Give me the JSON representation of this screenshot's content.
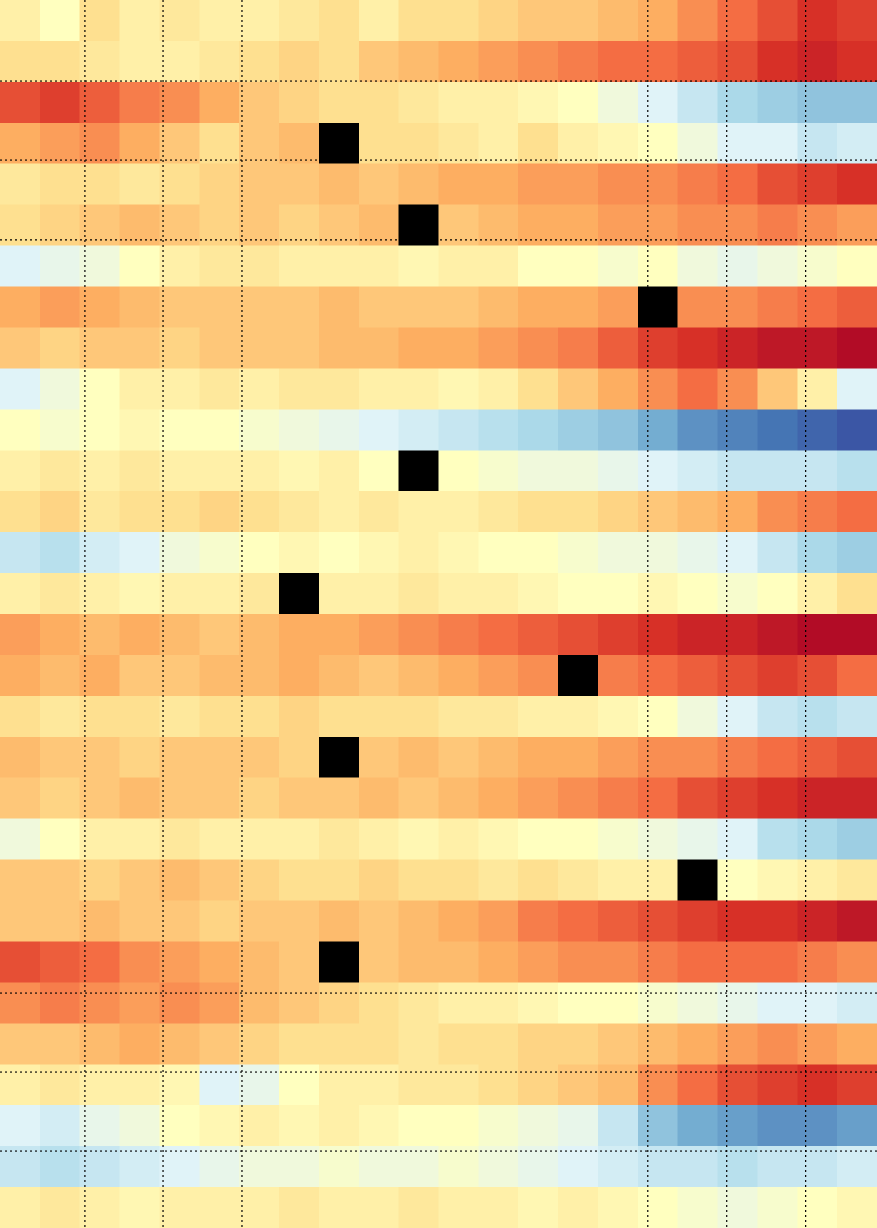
{
  "chart_data": {
    "type": "heatmap",
    "vlim": [
      -1,
      1
    ],
    "colormap": [
      "#313695",
      "#4575b4",
      "#74add1",
      "#abd9e9",
      "#e0f3f8",
      "#ffffbf",
      "#fee090",
      "#fdae61",
      "#f46d43",
      "#d73027",
      "#a50026"
    ],
    "missing_color": "#000000",
    "xlim": [
      0,
      22
    ],
    "ylim": [
      30,
      0
    ],
    "xticks": [
      2.13,
      4.09,
      6.07,
      16.25,
      18.23,
      20.21
    ],
    "yticks": [
      1.98,
      3.91,
      5.86,
      24.26,
      26.19,
      28.12
    ],
    "grid": true,
    "grid_color": "#000000",
    "values": [
      [
        0.1,
        0.0,
        0.2,
        0.1,
        0.15,
        0.1,
        0.1,
        0.15,
        0.2,
        0.1,
        0.2,
        0.2,
        0.25,
        0.3,
        0.3,
        0.35,
        0.4,
        0.5,
        0.6,
        0.7,
        0.8,
        0.75
      ],
      [
        0.2,
        0.2,
        0.15,
        0.1,
        0.1,
        0.15,
        0.2,
        0.25,
        0.2,
        0.3,
        0.35,
        0.4,
        0.45,
        0.5,
        0.55,
        0.6,
        0.6,
        0.65,
        0.7,
        0.8,
        0.85,
        0.8
      ],
      [
        0.7,
        0.75,
        0.65,
        0.55,
        0.5,
        0.4,
        0.3,
        0.25,
        0.2,
        0.2,
        0.15,
        0.1,
        0.1,
        0.05,
        0.0,
        -0.1,
        -0.2,
        -0.3,
        -0.4,
        -0.45,
        -0.5,
        -0.5
      ],
      [
        0.4,
        0.45,
        0.5,
        0.4,
        0.3,
        0.2,
        0.3,
        0.35,
        null,
        0.2,
        0.2,
        0.15,
        0.1,
        0.2,
        0.1,
        0.05,
        0.0,
        -0.1,
        -0.2,
        -0.2,
        -0.3,
        -0.25
      ],
      [
        0.15,
        0.2,
        0.2,
        0.15,
        0.2,
        0.25,
        0.3,
        0.3,
        0.35,
        0.3,
        0.35,
        0.4,
        0.4,
        0.45,
        0.45,
        0.5,
        0.5,
        0.55,
        0.6,
        0.7,
        0.75,
        0.8
      ],
      [
        0.2,
        0.25,
        0.3,
        0.35,
        0.3,
        0.25,
        0.3,
        0.25,
        0.3,
        0.35,
        null,
        0.3,
        0.35,
        0.4,
        0.4,
        0.45,
        0.45,
        0.5,
        0.5,
        0.55,
        0.5,
        0.45
      ],
      [
        -0.2,
        -0.15,
        -0.1,
        0.0,
        0.1,
        0.15,
        0.15,
        0.1,
        0.1,
        0.1,
        0.05,
        0.1,
        0.1,
        0.0,
        0.0,
        -0.05,
        0.0,
        -0.1,
        -0.15,
        -0.1,
        -0.05,
        0.0
      ],
      [
        0.4,
        0.45,
        0.4,
        0.35,
        0.3,
        0.3,
        0.3,
        0.3,
        0.35,
        0.3,
        0.3,
        0.3,
        0.35,
        0.4,
        0.4,
        0.45,
        null,
        0.5,
        0.5,
        0.55,
        0.6,
        0.65
      ],
      [
        0.3,
        0.25,
        0.3,
        0.3,
        0.25,
        0.3,
        0.3,
        0.3,
        0.35,
        0.35,
        0.4,
        0.4,
        0.45,
        0.5,
        0.55,
        0.65,
        0.75,
        0.8,
        0.85,
        0.9,
        0.9,
        0.95
      ],
      [
        -0.2,
        -0.1,
        0.0,
        0.1,
        0.1,
        0.15,
        0.1,
        0.15,
        0.15,
        0.1,
        0.1,
        0.05,
        0.1,
        0.2,
        0.3,
        0.4,
        0.5,
        0.6,
        0.5,
        0.3,
        0.1,
        -0.2
      ],
      [
        0.0,
        -0.05,
        0.0,
        0.05,
        0.0,
        0.0,
        -0.05,
        -0.1,
        -0.15,
        -0.2,
        -0.25,
        -0.3,
        -0.35,
        -0.4,
        -0.45,
        -0.5,
        -0.6,
        -0.7,
        -0.75,
        -0.8,
        -0.85,
        -0.9
      ],
      [
        0.1,
        0.15,
        0.1,
        0.15,
        0.1,
        0.1,
        0.1,
        0.05,
        0.1,
        0.0,
        null,
        0.0,
        -0.05,
        -0.1,
        -0.1,
        -0.15,
        -0.2,
        -0.25,
        -0.3,
        -0.3,
        -0.3,
        -0.35
      ],
      [
        0.2,
        0.25,
        0.15,
        0.2,
        0.2,
        0.25,
        0.2,
        0.15,
        0.1,
        0.15,
        0.1,
        0.1,
        0.15,
        0.2,
        0.2,
        0.25,
        0.3,
        0.35,
        0.4,
        0.5,
        0.55,
        0.6
      ],
      [
        -0.3,
        -0.35,
        -0.25,
        -0.2,
        -0.1,
        -0.05,
        0.0,
        0.05,
        0.0,
        0.05,
        0.1,
        0.05,
        0.0,
        0.0,
        -0.05,
        -0.1,
        -0.1,
        -0.15,
        -0.2,
        -0.3,
        -0.4,
        -0.45
      ],
      [
        0.1,
        0.15,
        0.1,
        0.05,
        0.1,
        0.1,
        0.15,
        null,
        0.1,
        0.1,
        0.15,
        0.1,
        0.1,
        0.05,
        0.0,
        0.0,
        0.05,
        0.0,
        -0.05,
        0.0,
        0.1,
        0.2
      ],
      [
        0.45,
        0.4,
        0.35,
        0.4,
        0.35,
        0.3,
        0.35,
        0.4,
        0.4,
        0.45,
        0.5,
        0.55,
        0.6,
        0.65,
        0.7,
        0.75,
        0.8,
        0.85,
        0.85,
        0.9,
        0.95,
        0.95
      ],
      [
        0.4,
        0.35,
        0.4,
        0.3,
        0.3,
        0.35,
        0.35,
        0.4,
        0.35,
        0.3,
        0.35,
        0.4,
        0.45,
        0.5,
        null,
        0.55,
        0.6,
        0.65,
        0.7,
        0.75,
        0.7,
        0.6
      ],
      [
        0.2,
        0.15,
        0.2,
        0.2,
        0.15,
        0.2,
        0.2,
        0.25,
        0.2,
        0.2,
        0.2,
        0.15,
        0.15,
        0.1,
        0.1,
        0.05,
        0.0,
        -0.1,
        -0.2,
        -0.3,
        -0.35,
        -0.3
      ],
      [
        0.35,
        0.3,
        0.3,
        0.25,
        0.3,
        0.3,
        0.3,
        0.25,
        null,
        0.3,
        0.35,
        0.3,
        0.35,
        0.4,
        0.4,
        0.45,
        0.5,
        0.5,
        0.55,
        0.6,
        0.65,
        0.7
      ],
      [
        0.3,
        0.25,
        0.3,
        0.35,
        0.3,
        0.3,
        0.25,
        0.3,
        0.3,
        0.35,
        0.3,
        0.35,
        0.4,
        0.45,
        0.5,
        0.55,
        0.6,
        0.7,
        0.75,
        0.8,
        0.85,
        0.85
      ],
      [
        -0.1,
        0.0,
        0.1,
        0.1,
        0.15,
        0.1,
        0.1,
        0.1,
        0.15,
        0.1,
        0.05,
        0.1,
        0.05,
        0.0,
        0.0,
        -0.05,
        -0.1,
        -0.15,
        -0.2,
        -0.35,
        -0.4,
        -0.45
      ],
      [
        0.3,
        0.3,
        0.25,
        0.3,
        0.35,
        0.3,
        0.25,
        0.2,
        0.2,
        0.25,
        0.2,
        0.2,
        0.15,
        0.2,
        0.15,
        0.1,
        0.1,
        null,
        0.0,
        0.05,
        0.1,
        0.15
      ],
      [
        0.3,
        0.3,
        0.35,
        0.3,
        0.3,
        0.25,
        0.3,
        0.3,
        0.35,
        0.3,
        0.35,
        0.4,
        0.45,
        0.55,
        0.6,
        0.65,
        0.7,
        0.75,
        0.8,
        0.8,
        0.85,
        0.9
      ],
      [
        0.7,
        0.65,
        0.6,
        0.5,
        0.45,
        0.4,
        0.35,
        0.3,
        null,
        0.3,
        0.35,
        0.35,
        0.4,
        0.45,
        0.5,
        0.5,
        0.55,
        0.6,
        0.6,
        0.6,
        0.55,
        0.5
      ],
      [
        0.5,
        0.55,
        0.5,
        0.45,
        0.5,
        0.45,
        0.35,
        0.3,
        0.25,
        0.2,
        0.15,
        0.1,
        0.1,
        0.05,
        0.0,
        0.0,
        -0.05,
        -0.1,
        -0.15,
        -0.2,
        -0.2,
        -0.25
      ],
      [
        0.3,
        0.3,
        0.35,
        0.4,
        0.35,
        0.3,
        0.25,
        0.2,
        0.2,
        0.2,
        0.15,
        0.2,
        0.2,
        0.25,
        0.25,
        0.3,
        0.35,
        0.4,
        0.45,
        0.5,
        0.45,
        0.4
      ],
      [
        0.1,
        0.15,
        0.1,
        0.1,
        0.05,
        -0.2,
        -0.15,
        0.0,
        0.1,
        0.1,
        0.15,
        0.15,
        0.2,
        0.25,
        0.3,
        0.35,
        0.5,
        0.6,
        0.7,
        0.75,
        0.8,
        0.75
      ],
      [
        -0.2,
        -0.25,
        -0.15,
        -0.1,
        0.0,
        0.05,
        0.1,
        0.05,
        0.1,
        0.05,
        0.0,
        0.0,
        -0.05,
        -0.1,
        -0.15,
        -0.3,
        -0.5,
        -0.6,
        -0.65,
        -0.7,
        -0.7,
        -0.65
      ],
      [
        -0.3,
        -0.35,
        -0.3,
        -0.25,
        -0.2,
        -0.15,
        -0.1,
        -0.1,
        -0.05,
        -0.1,
        -0.1,
        -0.05,
        -0.1,
        -0.15,
        -0.2,
        -0.25,
        -0.3,
        -0.3,
        -0.35,
        -0.3,
        -0.3,
        -0.25
      ],
      [
        0.1,
        0.15,
        0.1,
        0.05,
        0.1,
        0.1,
        0.1,
        0.15,
        0.1,
        0.1,
        0.15,
        0.1,
        0.1,
        0.05,
        0.1,
        0.05,
        0.0,
        -0.05,
        -0.1,
        -0.05,
        0.0,
        0.05
      ]
    ]
  }
}
